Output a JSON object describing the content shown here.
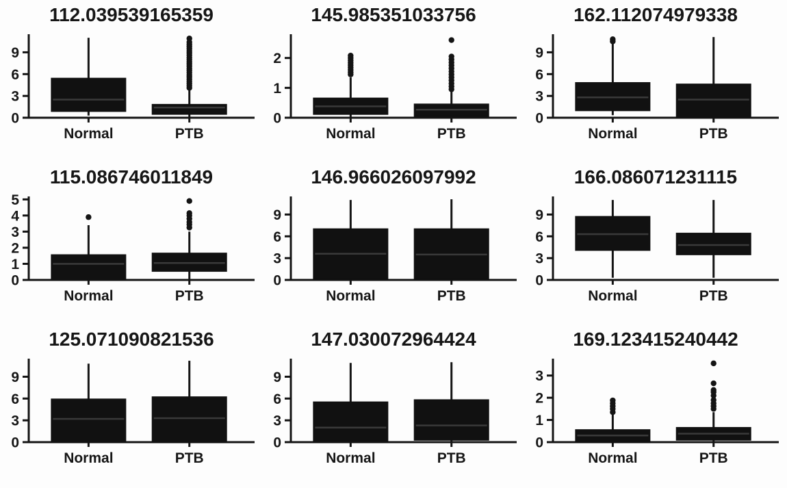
{
  "figure": {
    "description": "Grid of nine box plots comparing metabolite intensities between Normal and PTB groups",
    "group_labels": [
      "Normal",
      "PTB"
    ],
    "colors": {
      "ink": "#141414",
      "box_fill": "#111111",
      "median_line": "#3a3a3a",
      "background": "#fdfdfd",
      "text": "#161616"
    }
  },
  "chart_data": [
    {
      "type": "boxplot",
      "title": "112.039539165359",
      "categories": [
        "Normal",
        "PTB"
      ],
      "yticks": [
        0,
        3,
        6,
        9
      ],
      "ylim": [
        0,
        11.3
      ],
      "grid": false,
      "series": [
        {
          "name": "Normal",
          "q1": 0.9,
          "median": 2.5,
          "q3": 5.4,
          "whisker_low": 0.3,
          "whisker_high": 11.0,
          "outliers": []
        },
        {
          "name": "PTB",
          "q1": 0.5,
          "median": 1.4,
          "q3": 1.8,
          "whisker_low": 0.05,
          "whisker_high": 3.9,
          "outliers": [
            4.1,
            4.4,
            4.7,
            5.0,
            5.3,
            5.6,
            5.9,
            6.2,
            6.5,
            6.8,
            7.1,
            7.4,
            7.7,
            8.0,
            8.3,
            8.6,
            8.9,
            9.2,
            9.5,
            9.8,
            10.1,
            10.4,
            10.9
          ]
        }
      ]
    },
    {
      "type": "boxplot",
      "title": "145.985351033756",
      "categories": [
        "Normal",
        "PTB"
      ],
      "yticks": [
        0,
        1,
        2
      ],
      "ylim": [
        0,
        2.75
      ],
      "grid": false,
      "series": [
        {
          "name": "Normal",
          "q1": 0.12,
          "median": 0.38,
          "q3": 0.65,
          "whisker_low": 0.02,
          "whisker_high": 1.35,
          "outliers": [
            1.45,
            1.52,
            1.6,
            1.68,
            1.76,
            1.84,
            1.92,
            2.0,
            2.08
          ]
        },
        {
          "name": "PTB",
          "q1": 0.05,
          "median": 0.27,
          "q3": 0.45,
          "whisker_low": 0.01,
          "whisker_high": 0.9,
          "outliers": [
            0.95,
            1.05,
            1.15,
            1.25,
            1.35,
            1.45,
            1.55,
            1.65,
            1.75,
            1.85,
            1.95,
            2.05,
            2.6
          ]
        }
      ]
    },
    {
      "type": "boxplot",
      "title": "162.112074979338",
      "categories": [
        "Normal",
        "PTB"
      ],
      "yticks": [
        0,
        3,
        6,
        9
      ],
      "ylim": [
        0,
        11.3
      ],
      "grid": false,
      "series": [
        {
          "name": "Normal",
          "q1": 1.0,
          "median": 2.8,
          "q3": 4.8,
          "whisker_low": 0.35,
          "whisker_high": 10.2,
          "outliers": [
            10.5,
            10.8
          ]
        },
        {
          "name": "PTB",
          "q1": 0.15,
          "median": 2.5,
          "q3": 4.6,
          "whisker_low": 0.05,
          "whisker_high": 11.1,
          "outliers": []
        }
      ]
    },
    {
      "type": "boxplot",
      "title": "115.086746011849",
      "categories": [
        "Normal",
        "PTB"
      ],
      "yticks": [
        0,
        1,
        2,
        3,
        4,
        5
      ],
      "ylim": [
        0,
        5.1
      ],
      "grid": false,
      "series": [
        {
          "name": "Normal",
          "q1": 0.05,
          "median": 1.0,
          "q3": 1.55,
          "whisker_low": 0.0,
          "whisker_high": 3.4,
          "outliers": [
            3.9
          ]
        },
        {
          "name": "PTB",
          "q1": 0.55,
          "median": 1.05,
          "q3": 1.65,
          "whisker_low": 0.03,
          "whisker_high": 3.0,
          "outliers": [
            3.25,
            3.45,
            3.6,
            3.8,
            4.0,
            4.15,
            4.9
          ]
        }
      ]
    },
    {
      "type": "boxplot",
      "title": "146.966026097992",
      "categories": [
        "Normal",
        "PTB"
      ],
      "yticks": [
        0,
        3,
        6,
        9
      ],
      "ylim": [
        0,
        11.3
      ],
      "grid": false,
      "series": [
        {
          "name": "Normal",
          "q1": 0.12,
          "median": 3.6,
          "q3": 7.0,
          "whisker_low": 0.03,
          "whisker_high": 11.0,
          "outliers": []
        },
        {
          "name": "PTB",
          "q1": 0.12,
          "median": 3.5,
          "q3": 7.0,
          "whisker_low": 0.03,
          "whisker_high": 11.1,
          "outliers": []
        }
      ]
    },
    {
      "type": "boxplot",
      "title": "166.086071231115",
      "categories": [
        "Normal",
        "PTB"
      ],
      "yticks": [
        0,
        3,
        6,
        9
      ],
      "ylim": [
        0,
        11.3
      ],
      "grid": false,
      "series": [
        {
          "name": "Normal",
          "q1": 4.1,
          "median": 6.3,
          "q3": 8.7,
          "whisker_low": 0.3,
          "whisker_high": 11.0,
          "outliers": []
        },
        {
          "name": "PTB",
          "q1": 3.5,
          "median": 4.8,
          "q3": 6.4,
          "whisker_low": 0.3,
          "whisker_high": 11.0,
          "outliers": []
        }
      ]
    },
    {
      "type": "boxplot",
      "title": "125.071090821536",
      "categories": [
        "Normal",
        "PTB"
      ],
      "yticks": [
        0,
        3,
        6,
        9
      ],
      "ylim": [
        0,
        11.3
      ],
      "grid": false,
      "series": [
        {
          "name": "Normal",
          "q1": 0.05,
          "median": 3.2,
          "q3": 5.9,
          "whisker_low": 0.0,
          "whisker_high": 10.8,
          "outliers": []
        },
        {
          "name": "PTB",
          "q1": 0.05,
          "median": 3.3,
          "q3": 6.2,
          "whisker_low": 0.0,
          "whisker_high": 11.2,
          "outliers": []
        }
      ]
    },
    {
      "type": "boxplot",
      "title": "147.030072964424",
      "categories": [
        "Normal",
        "PTB"
      ],
      "yticks": [
        0,
        3,
        6,
        9
      ],
      "ylim": [
        0,
        11.3
      ],
      "grid": false,
      "series": [
        {
          "name": "Normal",
          "q1": 0.15,
          "median": 2.0,
          "q3": 5.5,
          "whisker_low": 0.03,
          "whisker_high": 10.9,
          "outliers": []
        },
        {
          "name": "PTB",
          "q1": 0.3,
          "median": 2.3,
          "q3": 5.8,
          "whisker_low": 0.05,
          "whisker_high": 11.0,
          "outliers": []
        }
      ]
    },
    {
      "type": "boxplot",
      "title": "169.123415240442",
      "categories": [
        "Normal",
        "PTB"
      ],
      "yticks": [
        0,
        1,
        2,
        3
      ],
      "ylim": [
        0,
        3.7
      ],
      "grid": false,
      "series": [
        {
          "name": "Normal",
          "q1": 0.03,
          "median": 0.3,
          "q3": 0.55,
          "whisker_low": 0.0,
          "whisker_high": 1.25,
          "outliers": [
            1.35,
            1.5,
            1.62,
            1.75,
            1.88
          ]
        },
        {
          "name": "PTB",
          "q1": 0.1,
          "median": 0.38,
          "q3": 0.65,
          "whisker_low": 0.0,
          "whisker_high": 1.35,
          "outliers": [
            1.5,
            1.62,
            1.75,
            1.9,
            2.1,
            2.25,
            2.35,
            2.65,
            3.55
          ]
        }
      ]
    }
  ]
}
